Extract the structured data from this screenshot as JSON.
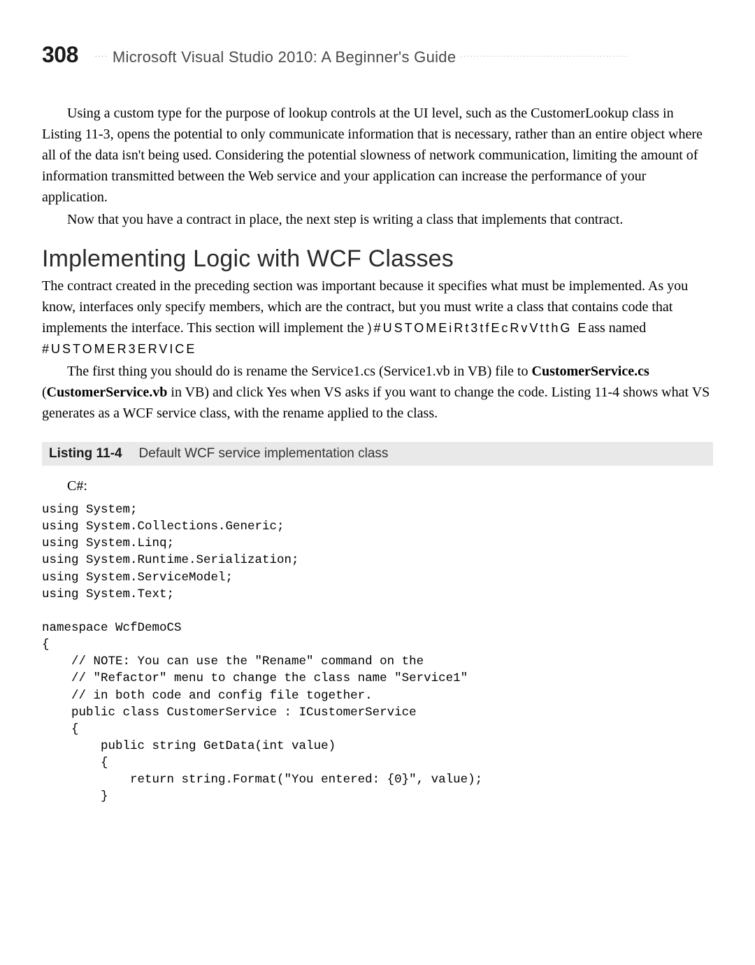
{
  "header": {
    "page_number": "308",
    "dots_left": "....",
    "title": "Microsoft Visual Studio 2010: A Beginner's Guide",
    "dots_right": "..................................................."
  },
  "para1": "Using a custom type for the purpose of lookup controls at the UI level, such as the CustomerLookup class in Listing 11-3, opens the potential to only communicate information that is necessary, rather than an entire object where all of the data isn't being used. Considering the potential slowness of network communication, limiting the amount of information transmitted between the Web service and your application can increase the performance of your application.",
  "para2": "Now that you have a contract in place, the next step is writing a class that implements that contract.",
  "section_heading": "Implementing Logic with WCF Classes",
  "para3_a": "The contract created in the preceding section was important because it specifies what must be implemented. As you know, interfaces only specify members, which are the contract, but you must write a class that contains code that implements the interface. This section will implement the ",
  "garbled1": ")#USTOMEiRt3tfEcRvVtthG E",
  "para3_b": "ass named ",
  "garbled2": "#USTOMER3ERVICE",
  "para4_a": "The first thing you should do is rename the Service1.cs (Service1.vb in VB) file to ",
  "para4_bold1": "CustomerService.cs",
  "para4_b": " (",
  "para4_bold2": "CustomerService.vb",
  "para4_c": " in VB) and click Yes when VS asks if you want to change the code. Listing 11-4 shows what VS generates as a WCF service class, with the rename applied to the class.",
  "listing": {
    "label": "Listing 11-4",
    "caption": "Default WCF service implementation class"
  },
  "code_lang": "C#:",
  "code": "using System;\nusing System.Collections.Generic;\nusing System.Linq;\nusing System.Runtime.Serialization;\nusing System.ServiceModel;\nusing System.Text;\n\nnamespace WcfDemoCS\n{\n    // NOTE: You can use the \"Rename\" command on the\n    // \"Refactor\" menu to change the class name \"Service1\"\n    // in both code and config file together.\n    public class CustomerService : ICustomerService\n    {\n        public string GetData(int value)\n        {\n            return string.Format(\"You entered: {0}\", value);\n        }"
}
